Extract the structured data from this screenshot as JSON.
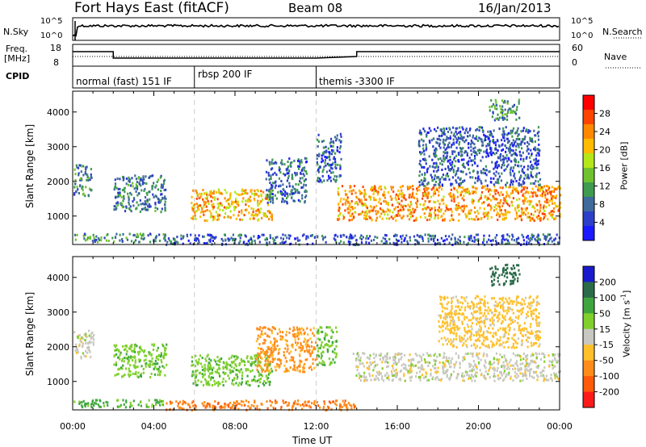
{
  "header": {
    "station": "Fort Hays East (fitACF)",
    "beam": "Beam 08",
    "date": "16/Jan/2013"
  },
  "noise_panel": {
    "left_label": "N.Sky",
    "right_label": "N.Search",
    "left_ticks": [
      "10^5",
      "10^0"
    ],
    "right_ticks": [
      "10^5",
      "10^0"
    ]
  },
  "freq_panel": {
    "left_label_top": "Freq.",
    "left_label_unit": "[MHz]",
    "left_ticks": [
      "18",
      "8"
    ],
    "right_label": "Nave",
    "right_ticks": [
      "60",
      "0"
    ]
  },
  "cpid": {
    "label": "CPID",
    "modes": [
      {
        "name": "normal (fast) 151 IF",
        "start_hour": 0
      },
      {
        "name": "rbsp 200 IF",
        "start_hour": 6
      },
      {
        "name": "themis -3300 IF",
        "start_hour": 12
      }
    ]
  },
  "x_axis": {
    "label": "Time UT",
    "ticks": [
      "00:00",
      "04:00",
      "08:00",
      "12:00",
      "16:00",
      "20:00",
      "00:00"
    ]
  },
  "power_colorbar": {
    "label": "Power [dB]",
    "ticks": [
      "28",
      "24",
      "20",
      "16",
      "12",
      "8",
      "4"
    ],
    "colors": [
      "#ff0000",
      "#ff4400",
      "#ff8800",
      "#ffbb00",
      "#b4e619",
      "#6fc22e",
      "#3f9b4f",
      "#3f6a9c",
      "#2d3fc9",
      "#1a1aff"
    ]
  },
  "velocity_colorbar": {
    "label": "Velocity [m s^-1]",
    "ticks": [
      "200",
      "100",
      "50",
      "15",
      "-15",
      "-50",
      "-100",
      "-200"
    ],
    "colors": [
      "#1a1acc",
      "#2c6b4a",
      "#3fa63f",
      "#7fd02c",
      "#c8c8c0",
      "#ffc02a",
      "#ff8c1a",
      "#ff5a0a",
      "#ff1a1a"
    ]
  },
  "chart_data": [
    {
      "type": "heatmap",
      "title": "Power",
      "xlabel": "Time UT",
      "ylabel": "Slant Range [km]",
      "xlim": [
        0,
        24
      ],
      "ylim": [
        180,
        4600
      ],
      "y_ticks": [
        "1000",
        "2000",
        "3000",
        "4000"
      ],
      "colorbar": "Power [dB]",
      "colorbar_range": [
        0,
        30
      ],
      "regions": [
        {
          "t0": 0.0,
          "t1": 0.9,
          "r0": 1600,
          "r1": 2500,
          "level": 9
        },
        {
          "t0": 2.0,
          "t1": 4.6,
          "r0": 1150,
          "r1": 2200,
          "level": 8
        },
        {
          "t0": 5.8,
          "t1": 9.8,
          "r0": 900,
          "r1": 1800,
          "level": 20
        },
        {
          "t0": 9.5,
          "t1": 11.5,
          "r0": 1400,
          "r1": 2700,
          "level": 7
        },
        {
          "t0": 12.0,
          "t1": 13.2,
          "r0": 2000,
          "r1": 3400,
          "level": 6
        },
        {
          "t0": 13.0,
          "t1": 24.0,
          "r0": 900,
          "r1": 1900,
          "level": 22
        },
        {
          "t0": 17.0,
          "t1": 23.0,
          "r0": 1900,
          "r1": 3600,
          "level": 6
        },
        {
          "t0": 20.5,
          "t1": 22.0,
          "r0": 3800,
          "r1": 4400,
          "level": 10
        },
        {
          "t0": 0.0,
          "t1": 4.5,
          "r0": 280,
          "r1": 520,
          "level": 10
        },
        {
          "t0": 4.5,
          "t1": 24.0,
          "r0": 200,
          "r1": 500,
          "level": 6
        }
      ]
    },
    {
      "type": "heatmap",
      "title": "Velocity",
      "xlabel": "Time UT",
      "ylabel": "Slant Range [km]",
      "xlim": [
        0,
        24
      ],
      "ylim": [
        180,
        4600
      ],
      "y_ticks": [
        "1000",
        "2000",
        "3000",
        "4000"
      ],
      "colorbar": "Velocity [m s^-1]",
      "colorbar_range": [
        -200,
        200
      ],
      "regions": [
        {
          "t0": 0.0,
          "t1": 1.0,
          "r0": 1700,
          "r1": 2500,
          "velocity": 0
        },
        {
          "t0": 2.0,
          "t1": 4.6,
          "r0": 1150,
          "r1": 2100,
          "velocity": 40
        },
        {
          "t0": 5.8,
          "t1": 9.8,
          "r0": 900,
          "r1": 1800,
          "velocity": 40
        },
        {
          "t0": 9.0,
          "t1": 12.0,
          "r0": 1300,
          "r1": 2600,
          "velocity": -60
        },
        {
          "t0": 12.0,
          "t1": 13.0,
          "r0": 1500,
          "r1": 2600,
          "velocity": 40
        },
        {
          "t0": 13.8,
          "t1": 24.0,
          "r0": 1050,
          "r1": 1850,
          "velocity": 0
        },
        {
          "t0": 18.0,
          "t1": 23.0,
          "r0": 2000,
          "r1": 3500,
          "velocity": -30
        },
        {
          "t0": 20.5,
          "t1": 22.0,
          "r0": 3800,
          "r1": 4400,
          "velocity": 180
        },
        {
          "t0": 0.0,
          "t1": 4.5,
          "r0": 280,
          "r1": 500,
          "velocity": 60
        },
        {
          "t0": 4.5,
          "t1": 14.0,
          "r0": 200,
          "r1": 480,
          "velocity": -90
        }
      ]
    }
  ]
}
